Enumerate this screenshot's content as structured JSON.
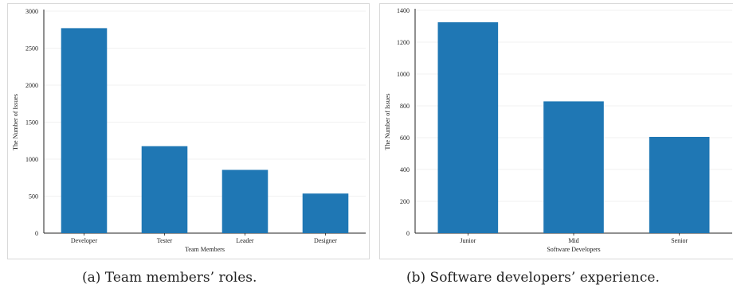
{
  "captions": {
    "a": "(a) Team members’ roles.",
    "b": "(b) Software developers’ experience."
  },
  "colors": {
    "bar": "#1f77b4",
    "grid": "#ececec",
    "axis": "#222222"
  },
  "chart_data": [
    {
      "type": "bar",
      "title": "",
      "xlabel": "Team Members",
      "ylabel": "The Number of Issues",
      "categories": [
        "Developer",
        "Tester",
        "Leader",
        "Designer"
      ],
      "values": [
        2770,
        1175,
        855,
        535
      ],
      "ylim": [
        0,
        3000
      ],
      "yticks": [
        0,
        500,
        1000,
        1500,
        2000,
        2500,
        3000
      ],
      "grid": true,
      "legend": "none"
    },
    {
      "type": "bar",
      "title": "",
      "xlabel": "Software Developers",
      "ylabel": "The Number of Issues",
      "categories": [
        "Junior",
        "Mid",
        "Senior"
      ],
      "values": [
        1325,
        828,
        605
      ],
      "ylim": [
        0,
        1400
      ],
      "yticks": [
        0,
        200,
        400,
        600,
        800,
        1000,
        1200,
        1400
      ],
      "grid": true,
      "legend": "none"
    }
  ]
}
